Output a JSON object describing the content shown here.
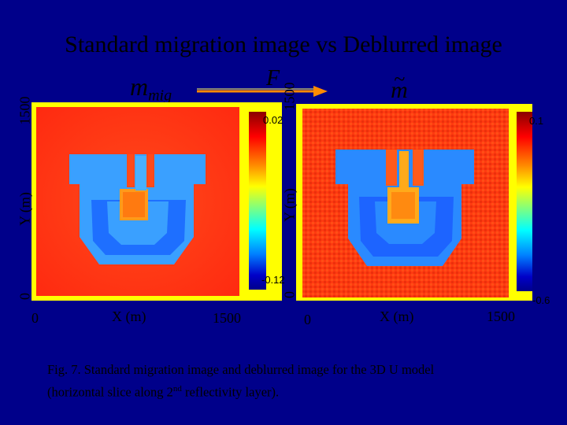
{
  "title": "Standard migration image vs Deblurred image",
  "symbols": {
    "m_mig_base": "m",
    "m_mig_sub": "mig",
    "operator": "F",
    "m_tilde": "m",
    "tilde": "~"
  },
  "left_panel": {
    "y_label": "Y (m)",
    "x_label": "X (m)",
    "y_min": "0",
    "y_max": "1500",
    "x_min": "0",
    "x_max": "1500",
    "cbar_max": "0.02",
    "cbar_min": "-0.12"
  },
  "right_panel": {
    "y_label": "Y (m)",
    "x_label": "X (m)",
    "y_min": "0",
    "y_max": "1500",
    "x_min": "0",
    "x_max": "1500",
    "cbar_max": "0.1",
    "cbar_min": "-0.6"
  },
  "caption": {
    "line1": "Fig. 7. Standard migration image and deblurred image for the 3D U model",
    "line2_pre": "(horizontal slice along 2",
    "line2_sup": "nd",
    "line2_post": " reflectivity layer)."
  },
  "colors": {
    "background": "#00008a",
    "frame": "#ffff00",
    "image_background": "#ff3a1a",
    "u_shape": "#3aa0ff",
    "u_shape_dark": "#1a5aff",
    "center_square": "#ff9a1a"
  }
}
